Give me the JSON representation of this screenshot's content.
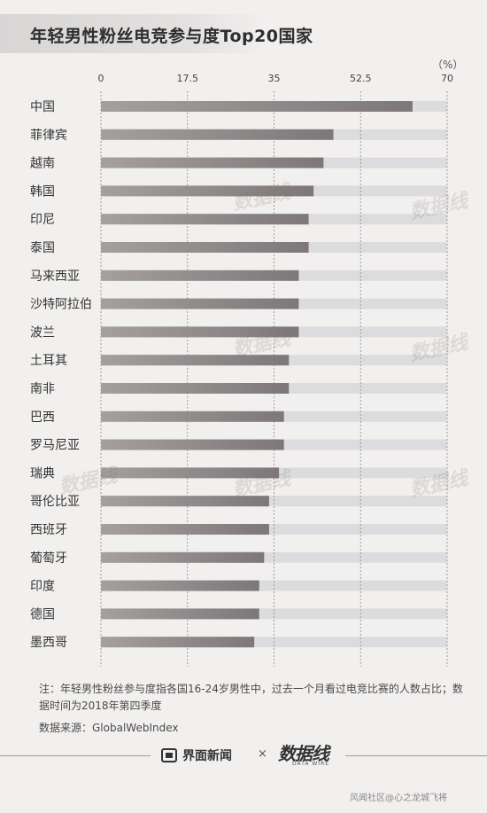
{
  "title": "年轻男性粉丝电竞参与度Top20国家",
  "unit": "（%）",
  "note": "注：年轻男性粉丝参与度指各国16-24岁男性中，过去一个月看过电竞比赛的人数占比；数据时间为2018年第四季度",
  "source": "数据来源：GlobalWebIndex",
  "footer": {
    "brand1": "界面新闻",
    "times": "×",
    "brand2_main": "数据线",
    "brand2_sub": "DATA WIRE",
    "credit": "风闻社区@心之龙城飞将"
  },
  "watermark_text": "数据线",
  "colors": {
    "bar_start": "#a59f9f",
    "bar_end": "#7e7779",
    "track": "#dcdcde",
    "grid": "#8a8a8a"
  },
  "chart_data": {
    "type": "bar",
    "orientation": "horizontal",
    "title": "年轻男性粉丝电竞参与度Top20国家",
    "unit": "%",
    "xlim": [
      0,
      70
    ],
    "ticks": [
      "0",
      "17.5",
      "35",
      "52.5",
      "70"
    ],
    "tick_values": [
      0,
      17.5,
      35,
      52.5,
      70
    ],
    "grid": true,
    "categories": [
      "中国",
      "菲律宾",
      "越南",
      "韩国",
      "印尼",
      "泰国",
      "马来西亚",
      "沙特阿拉伯",
      "波兰",
      "土耳其",
      "南非",
      "巴西",
      "罗马尼亚",
      "瑞典",
      "哥伦比亚",
      "西班牙",
      "葡萄牙",
      "印度",
      "德国",
      "墨西哥"
    ],
    "values": [
      63,
      47,
      45,
      43,
      42,
      42,
      40,
      40,
      40,
      38,
      38,
      37,
      37,
      36,
      34,
      34,
      33,
      32,
      32,
      31
    ]
  }
}
